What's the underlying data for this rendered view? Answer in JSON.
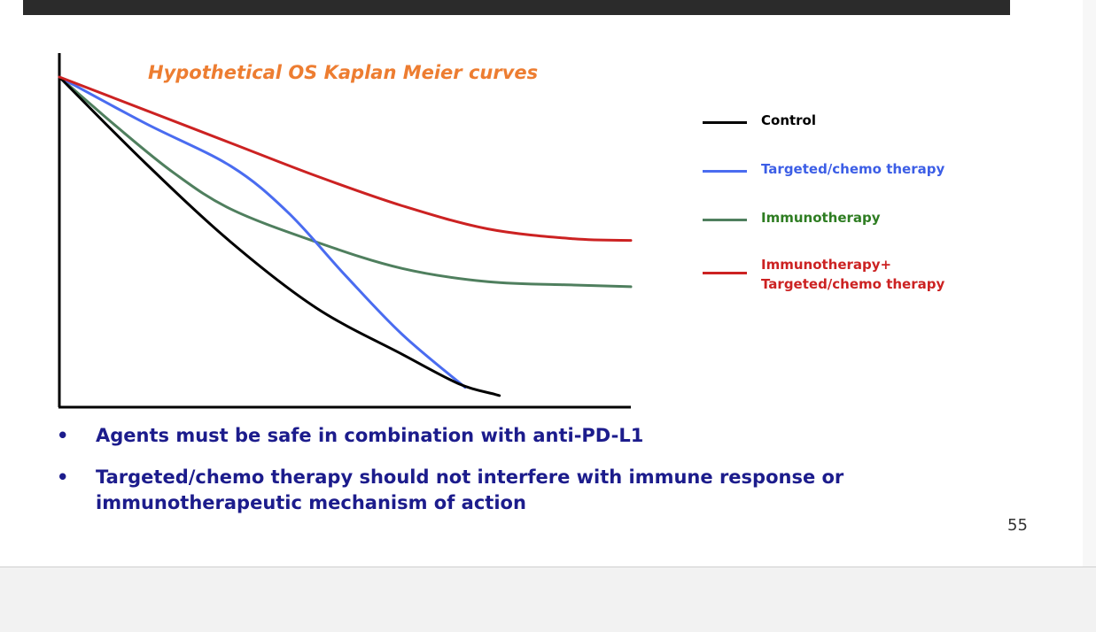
{
  "slide": {
    "page_number": "55",
    "bullets": [
      "Agents must be safe in combination with anti-PD-L1",
      "Targeted/chemo therapy should not interfere with immune response or immunotherapeutic mechanism of action"
    ]
  },
  "chart_data": {
    "type": "line",
    "title": "Hypothetical OS Kaplan Meier curves",
    "xlabel": "",
    "ylabel": "",
    "xlim": [
      0,
      100
    ],
    "ylim": [
      0,
      100
    ],
    "grid": false,
    "axis_ticks": false,
    "legend_position": "right",
    "series": [
      {
        "name": "Control",
        "color": "#000000",
        "label_color": "#000000",
        "points": [
          [
            0,
            100
          ],
          [
            15,
            74
          ],
          [
            30,
            50
          ],
          [
            45,
            30
          ],
          [
            60,
            16
          ],
          [
            70,
            7
          ],
          [
            76,
            4
          ],
          [
            77,
            3.5
          ]
        ]
      },
      {
        "name": "Targeted/chemo therapy",
        "color": "#4a6cf0",
        "label_color": "#3c5ee6",
        "points": [
          [
            0,
            100
          ],
          [
            15,
            86
          ],
          [
            30,
            73
          ],
          [
            40,
            59
          ],
          [
            50,
            40
          ],
          [
            60,
            22
          ],
          [
            71,
            6
          ]
        ]
      },
      {
        "name": "Immunotherapy",
        "color": "#4f7f5e",
        "label_color": "#2e7d22",
        "points": [
          [
            0,
            100
          ],
          [
            10,
            85
          ],
          [
            20,
            71
          ],
          [
            30,
            60
          ],
          [
            45,
            50
          ],
          [
            60,
            42
          ],
          [
            75,
            38
          ],
          [
            90,
            37
          ],
          [
            100,
            36.5
          ]
        ]
      },
      {
        "name": "Immunotherapy+ Targeted/chemo therapy",
        "label_lines": [
          "Immunotherapy+",
          "Targeted/chemo therapy"
        ],
        "color": "#cc2222",
        "label_color": "#cc2222",
        "points": [
          [
            0,
            100
          ],
          [
            15,
            90
          ],
          [
            30,
            80
          ],
          [
            45,
            70
          ],
          [
            60,
            61
          ],
          [
            75,
            54
          ],
          [
            90,
            51
          ],
          [
            100,
            50.5
          ]
        ]
      }
    ]
  }
}
